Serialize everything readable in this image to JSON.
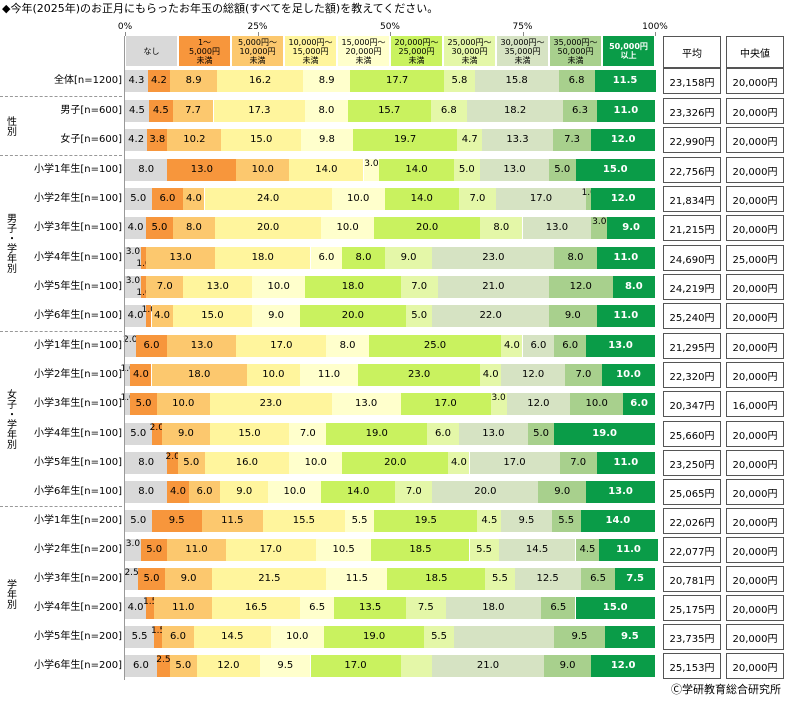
{
  "chart_data": {
    "type": "stacked-bar-horizontal",
    "title": "◆今年(2025年)のお正月にもらったお年玉の総額(すべてを足した額)を教えてください。",
    "xlim": [
      0,
      100
    ],
    "xticks": [
      {
        "value": 0,
        "label": "0%"
      },
      {
        "value": 25,
        "label": "25%"
      },
      {
        "value": 50,
        "label": "50%"
      },
      {
        "value": 75,
        "label": "75%"
      },
      {
        "value": 100,
        "label": "100%"
      }
    ],
    "categories": [
      "全体[n=1200]",
      "男子[n=600]",
      "女子[n=600]",
      "小学1年生[n=100]",
      "小学2年生[n=100]",
      "小学3年生[n=100]",
      "小学4年生[n=100]",
      "小学5年生[n=100]",
      "小学6年生[n=100]",
      "小学1年生[n=100]",
      "小学2年生[n=100]",
      "小学3年生[n=100]",
      "小学4年生[n=100]",
      "小学5年生[n=100]",
      "小学6年生[n=100]",
      "小学1年生[n=200]",
      "小学2年生[n=200]",
      "小学3年生[n=200]",
      "小学4年生[n=200]",
      "小学5年生[n=200]",
      "小学6年生[n=200]"
    ],
    "groups": [
      "性別",
      "男子・学年別",
      "女子・学年別",
      "学年別"
    ],
    "series": [
      {
        "name": "なし",
        "color": "#d9d9d9",
        "values": [
          4.3,
          4.5,
          4.2,
          8,
          5,
          4,
          3,
          3,
          4,
          2,
          1,
          1,
          5,
          8,
          8,
          5,
          3,
          2.5,
          4,
          5.5,
          6
        ],
        "value_labels": [
          "4.3",
          "4.5",
          "4.2",
          "8.0",
          "5.0",
          "4.0",
          "3.0",
          "3.0",
          "4.0",
          "2.0",
          "1.0",
          "1.0",
          "5.0",
          "8.0",
          "8.0",
          "5.0",
          "3.0",
          "2.5",
          "4.0",
          "5.5",
          "6.0"
        ]
      },
      {
        "name": "1～\n5,000円\n未満",
        "color": "#f7963c",
        "values": [
          4.2,
          4.5,
          3.8,
          13,
          6,
          5,
          1,
          1,
          1,
          6,
          4,
          5,
          2,
          2,
          4,
          9.5,
          5,
          5,
          1.5,
          1.5,
          2.5
        ],
        "value_labels": [
          "4.2",
          "4.5",
          "3.8",
          "13.0",
          "6.0",
          "5.0",
          "1.0",
          "1.0",
          "1.0",
          "6.0",
          "4.0",
          "5.0",
          "2.0",
          "2.0",
          "4.0",
          "9.5",
          "5.0",
          "5.0",
          "1.5",
          "1.5",
          "2.5"
        ]
      },
      {
        "name": "5,000円～\n10,000円\n未満",
        "color": "#fcc86e",
        "values": [
          8.9,
          7.7,
          10.2,
          10,
          4,
          8,
          13,
          7,
          4,
          13,
          18,
          10,
          9,
          5,
          6,
          11.5,
          11,
          9,
          11,
          6,
          5
        ],
        "value_labels": [
          "8.9",
          "7.7",
          "10.2",
          "10.0",
          "4.0",
          "8.0",
          "13.0",
          "7.0",
          "4.0",
          "13.0",
          "18.0",
          "10.0",
          "9.0",
          "5.0",
          "6.0",
          "11.5",
          "11.0",
          "9.0",
          "11.0",
          "6.0",
          "5.0"
        ]
      },
      {
        "name": "10,000円～\n15,000円\n未満",
        "color": "#fff59d",
        "values": [
          16.2,
          17.3,
          15,
          14,
          24,
          20,
          18,
          13,
          15,
          17,
          10,
          23,
          15,
          16,
          9,
          15.5,
          17,
          21.5,
          16.5,
          14.5,
          12
        ],
        "value_labels": [
          "16.2",
          "17.3",
          "15.0",
          "14.0",
          "24.0",
          "20.0",
          "18.0",
          "13.0",
          "15.0",
          "17.0",
          "10.0",
          "23.0",
          "15.0",
          "16.0",
          "9.0",
          "15.5",
          "17.0",
          "21.5",
          "16.5",
          "14.5",
          "12.0"
        ]
      },
      {
        "name": "15,000円～\n20,000円\n未満",
        "color": "#ffffcc",
        "values": [
          8.9,
          8,
          9.8,
          3,
          10,
          10,
          6,
          10,
          9,
          8,
          11,
          13,
          7,
          10,
          10,
          5.5,
          10.5,
          11.5,
          6.5,
          10,
          9.5
        ],
        "value_labels": [
          "8.9",
          "8.0",
          "9.8",
          "3.0",
          "10.0",
          "10.0",
          "6.0",
          "10.0",
          "9.0",
          "8.0",
          "11.0",
          "13.0",
          "7.0",
          "10.0",
          "10.0",
          "5.5",
          "10.5",
          "11.5",
          "6.5",
          "10.0",
          "9.5"
        ]
      },
      {
        "name": "20,000円～\n25,000円\n未満",
        "color": "#c9f25f",
        "values": [
          17.7,
          15.7,
          19.7,
          14,
          14,
          20,
          8,
          18,
          20,
          25,
          23,
          17,
          19,
          20,
          14,
          19.5,
          18.5,
          18.5,
          13.5,
          19,
          17
        ],
        "value_labels": [
          "17.7",
          "15.7",
          "19.7",
          "14.0",
          "14.0",
          "20.0",
          "8.0",
          "18.0",
          "20.0",
          "25.0",
          "23.0",
          "17.0",
          "19.0",
          "20.0",
          "14.0",
          "19.5",
          "18.5",
          "18.5",
          "13.5",
          "19.0",
          "17.0"
        ]
      },
      {
        "name": "25,000円～\n30,000円\n未満",
        "color": "#e4f7a8",
        "values": [
          5.8,
          6.8,
          4.7,
          5,
          7,
          8,
          9,
          7,
          5,
          4,
          4,
          3,
          6,
          4,
          7,
          4.5,
          5.5,
          5.5,
          7.5,
          5.5,
          6
        ],
        "value_labels": [
          "5.8",
          "6.8",
          "4.7",
          "5.0",
          "7.0",
          "8.0",
          "9.0",
          "7.0",
          "5.0",
          "4.0",
          "4.0",
          "3.0",
          "6.0",
          "4.0",
          "7.0",
          "4.5",
          "5.5",
          "5.5",
          "7.5",
          "5.5",
          null
        ]
      },
      {
        "name": "30,000円～\n35,000円\n未満",
        "color": "#d6e3c3",
        "values": [
          15.8,
          18.2,
          13.3,
          13,
          17,
          13,
          23,
          21,
          22,
          6,
          12,
          12,
          13,
          17,
          20,
          9.5,
          14.5,
          12.5,
          18,
          19,
          21
        ],
        "value_labels": [
          "15.8",
          "18.2",
          "13.3",
          "13.0",
          "17.0",
          "13.0",
          "23.0",
          "21.0",
          "22.0",
          "6.0",
          "12.0",
          "12.0",
          "13.0",
          "17.0",
          "20.0",
          "9.5",
          "14.5",
          "12.5",
          "18.0",
          null,
          "21.0"
        ]
      },
      {
        "name": "35,000円～\n50,000円\n未満",
        "color": "#a8d08d",
        "values": [
          6.8,
          6.3,
          7.3,
          5,
          1,
          3,
          8,
          12,
          9,
          6,
          7,
          10,
          5,
          7,
          9,
          5.5,
          4.5,
          6.5,
          6.5,
          9.5,
          9
        ],
        "value_labels": [
          "6.8",
          "6.3",
          "7.3",
          "5.0",
          "1.0",
          "3.0",
          "8.0",
          "12.0",
          "9.0",
          "6.0",
          "7.0",
          "10.0",
          "5.0",
          "7.0",
          "9.0",
          "5.5",
          "4.5",
          "6.5",
          "6.5",
          "9.5",
          "9.0"
        ]
      },
      {
        "name": "50,000円\n以上",
        "color": "#0a9c48",
        "values": [
          11.5,
          11,
          12,
          15,
          12,
          9,
          11,
          8,
          11,
          13,
          10,
          6,
          19,
          11,
          13,
          14,
          11,
          7.5,
          15,
          9.5,
          12
        ],
        "value_labels": [
          "11.5",
          "11.0",
          "12.0",
          "15.0",
          "12.0",
          "9.0",
          "11.0",
          "8.0",
          "11.0",
          "13.0",
          "10.0",
          "6.0",
          "19.0",
          "11.0",
          "13.0",
          "14.0",
          "11.0",
          "7.5",
          "15.0",
          "9.5",
          "12.0"
        ]
      }
    ],
    "table": {
      "headers": [
        "平均",
        "中央値"
      ],
      "mean": [
        "23,158円",
        "23,326円",
        "22,990円",
        "22,756円",
        "21,834円",
        "21,215円",
        "24,690円",
        "24,219円",
        "25,240円",
        "21,295円",
        "22,320円",
        "20,347円",
        "25,660円",
        "23,250円",
        "25,065円",
        "22,026円",
        "22,077円",
        "20,781円",
        "25,175円",
        "23,735円",
        "25,153円"
      ],
      "median": [
        "20,000円",
        "20,000円",
        "20,000円",
        "20,000円",
        "20,000円",
        "20,000円",
        "25,000円",
        "20,000円",
        "20,000円",
        "20,000円",
        "20,000円",
        "16,000円",
        "20,000円",
        "20,000円",
        "20,000円",
        "20,000円",
        "20,000円",
        "20,000円",
        "20,000円",
        "20,000円",
        "20,000円"
      ]
    },
    "source": "Ⓒ学研教育総合研究所"
  }
}
